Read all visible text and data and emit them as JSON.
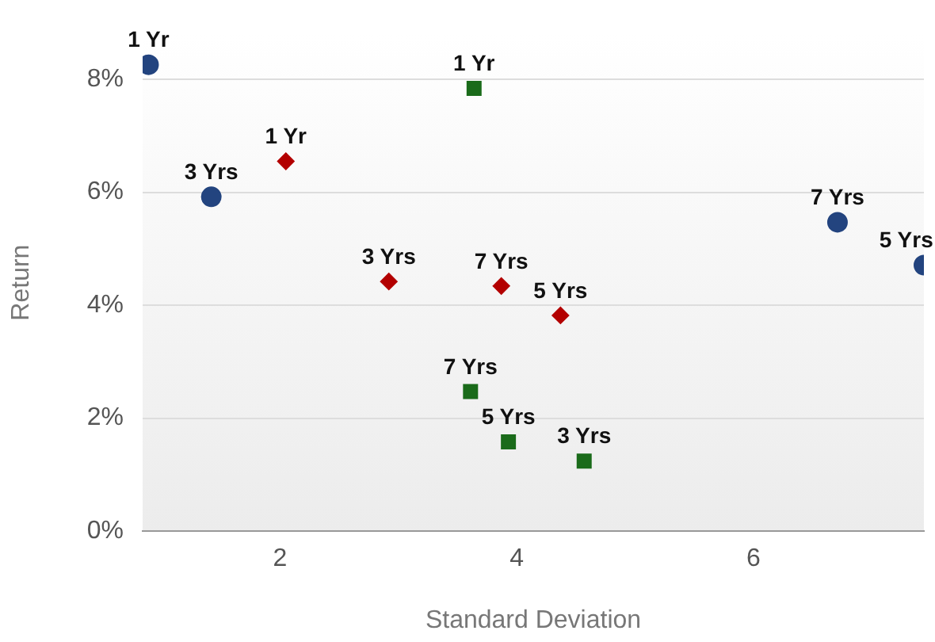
{
  "chart_data": {
    "type": "scatter",
    "xlabel": "Standard Deviation",
    "ylabel": "Return",
    "xlim": [
      0.84,
      7.44
    ],
    "xticks": [
      2,
      4,
      6
    ],
    "ylim": [
      0,
      8.8
    ],
    "yticks": [
      {
        "value": 0,
        "label": "0%"
      },
      {
        "value": 2,
        "label": "2%"
      },
      {
        "value": 4,
        "label": "4%"
      },
      {
        "value": 6,
        "label": "6%"
      },
      {
        "value": 8,
        "label": "8%"
      }
    ],
    "grid": "y",
    "legend": false,
    "series": [
      {
        "color": "#23447f",
        "marker": "circle",
        "x": [
          0.89,
          1.42,
          6.71,
          7.44
        ],
        "values": [
          8.26,
          5.92,
          5.47,
          4.71
        ]
      },
      {
        "color": "#b30000",
        "marker": "diamond",
        "x": [
          2.05,
          2.92,
          3.87,
          4.37
        ],
        "values": [
          6.55,
          4.42,
          4.34,
          3.82
        ]
      },
      {
        "color": "#1a6b1a",
        "marker": "square",
        "x": [
          3.64,
          3.61,
          3.93,
          4.57
        ],
        "values": [
          7.84,
          2.47,
          1.58,
          1.24
        ]
      }
    ],
    "annotations": [
      {
        "text": "1 Yr",
        "x": 0.89,
        "y": 8.26
      },
      {
        "text": "3 Yrs",
        "x": 1.42,
        "y": 5.92
      },
      {
        "text": "7 Yrs",
        "x": 6.71,
        "y": 5.47
      },
      {
        "text": "5 Yrs",
        "x": 7.44,
        "y": 4.71
      },
      {
        "text": "1 Yr",
        "x": 2.05,
        "y": 6.55
      },
      {
        "text": "3 Yrs",
        "x": 2.92,
        "y": 4.42
      },
      {
        "text": "7 Yrs",
        "x": 3.87,
        "y": 4.34
      },
      {
        "text": "5 Yrs",
        "x": 4.37,
        "y": 3.82
      },
      {
        "text": "1 Yr",
        "x": 3.64,
        "y": 7.84
      },
      {
        "text": "7 Yrs",
        "x": 3.61,
        "y": 2.47
      },
      {
        "text": "5 Yrs",
        "x": 3.93,
        "y": 1.58
      },
      {
        "text": "3 Yrs",
        "x": 4.57,
        "y": 1.24
      }
    ]
  }
}
